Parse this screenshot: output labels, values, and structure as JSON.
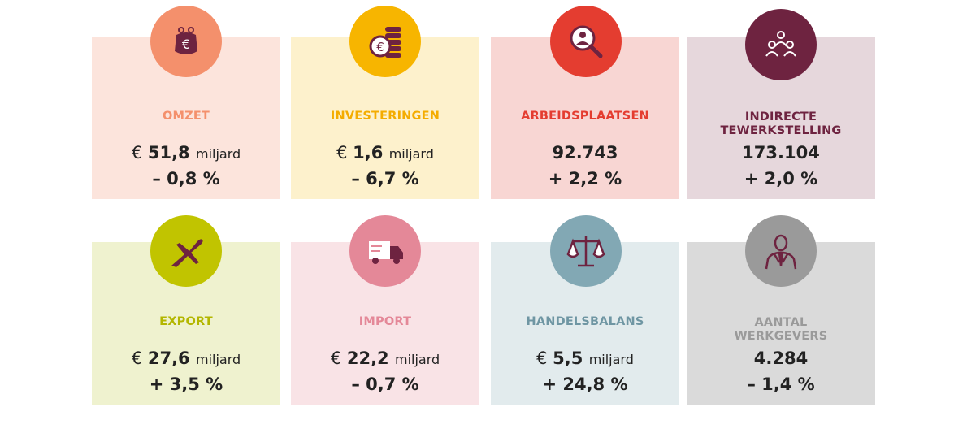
{
  "cards": [
    {
      "label_lines": [
        "OMZET"
      ],
      "prefix": "€",
      "value": "51,8",
      "unit": "miljard",
      "change": "– 0,8 %",
      "bg": "#fce4dc",
      "icon_bg": "#f4906c",
      "accent": "#f4906c",
      "icon": "purse-euro-icon"
    },
    {
      "label_lines": [
        "INVESTERINGEN"
      ],
      "prefix": "€",
      "value": "1,6",
      "unit": "miljard",
      "change": "– 6,7 %",
      "bg": "#fdf1cc",
      "icon_bg": "#f7b500",
      "accent": "#f4ac00",
      "icon": "coins-euro-icon"
    },
    {
      "label_lines": [
        "ARBEIDSPLAATSEN"
      ],
      "prefix": "",
      "value": "92.743",
      "unit": "",
      "change": "+ 2,2 %",
      "bg": "#f8d6d3",
      "icon_bg": "#e43d30",
      "accent": "#e43d30",
      "icon": "magnifier-person-icon"
    },
    {
      "label_lines": [
        "INDIRECTE",
        "TEWERKSTELLING"
      ],
      "prefix": "",
      "value": "173.104",
      "unit": "",
      "change": "+ 2,0 %",
      "bg": "#e6d7dc",
      "icon_bg": "#6e2340",
      "accent": "#6e2340",
      "icon": "people-group-icon"
    },
    {
      "label_lines": [
        "EXPORT"
      ],
      "prefix": "€",
      "value": "27,6",
      "unit": "miljard",
      "change": "+ 3,5 %",
      "bg": "#eff2cf",
      "icon_bg": "#c1c400",
      "accent": "#b3b600",
      "icon": "airplane-icon"
    },
    {
      "label_lines": [
        "IMPORT"
      ],
      "prefix": "€",
      "value": "22,2",
      "unit": "miljard",
      "change": "– 0,7 %",
      "bg": "#f9e3e6",
      "icon_bg": "#e48898",
      "accent": "#e48898",
      "icon": "delivery-truck-icon"
    },
    {
      "label_lines": [
        "HANDELSBALANS"
      ],
      "prefix": "€",
      "value": "5,5",
      "unit": "miljard",
      "change": "+ 24,8 %",
      "bg": "#e2ebed",
      "icon_bg": "#82a8b4",
      "accent": "#6f96a3",
      "icon": "balance-scale-icon"
    },
    {
      "label_lines": [
        "AANTAL",
        "WERKGEVERS"
      ],
      "prefix": "",
      "value": "4.284",
      "unit": "",
      "change": "– 1,4 %",
      "bg": "#dadada",
      "icon_bg": "#9a9a9a",
      "accent": "#9a9a9a",
      "icon": "businessman-icon"
    }
  ]
}
